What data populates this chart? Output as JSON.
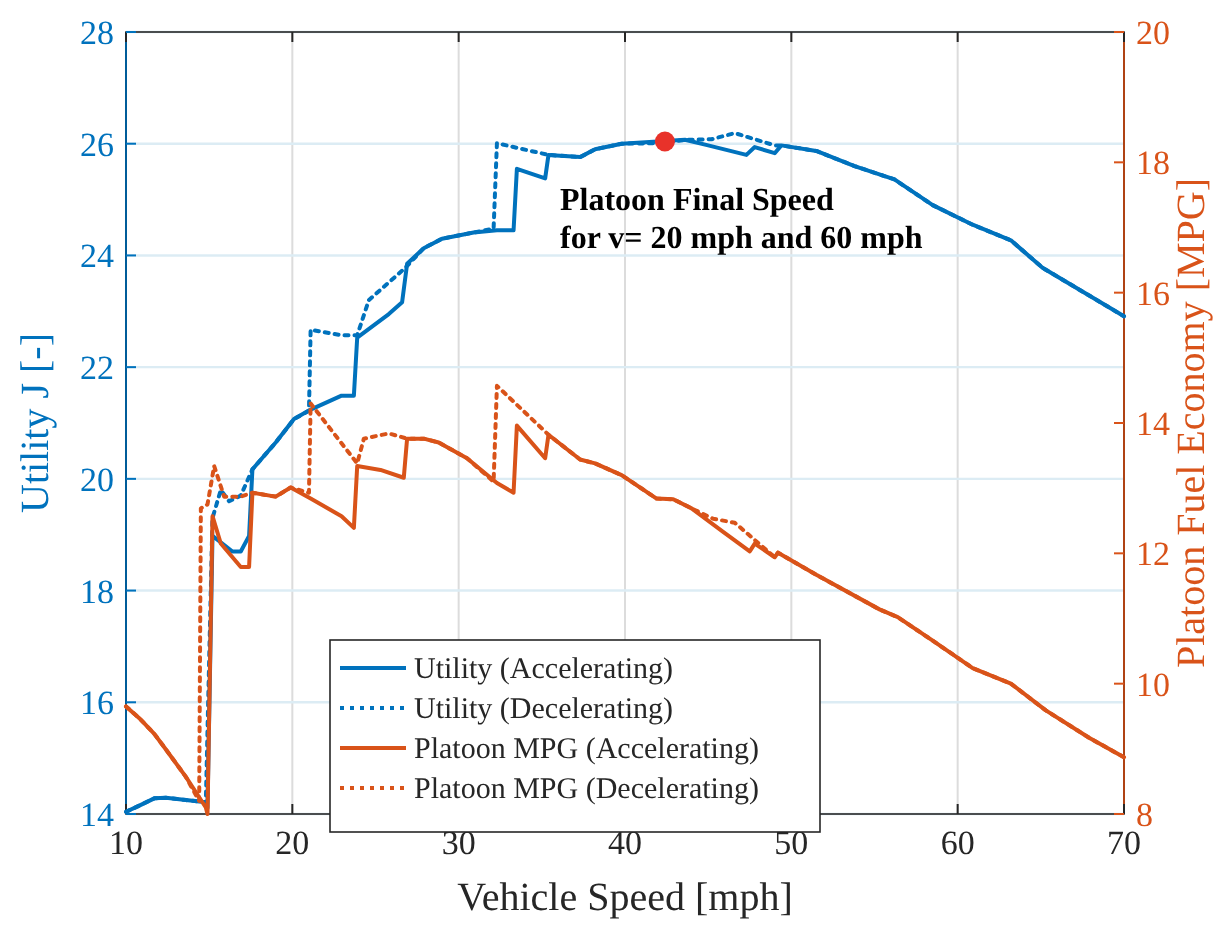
{
  "chart_data": {
    "type": "line",
    "xlabel": "Vehicle Speed [mph]",
    "ylabel": "Utility J [-]",
    "y2label": "Platoon Fuel Economy [MPG]",
    "xlim": [
      10,
      70
    ],
    "xticks": [
      10,
      20,
      30,
      40,
      50,
      60,
      70
    ],
    "ylim": [
      14,
      28
    ],
    "yticks": [
      14,
      16,
      18,
      20,
      22,
      24,
      26,
      28
    ],
    "y2lim": [
      8,
      20
    ],
    "y2ticks": [
      8,
      10,
      12,
      14,
      16,
      18,
      20
    ],
    "grid": true,
    "legend": "bottom",
    "annotations": [
      "Platoon Final Speed\nfor v= 20 mph and 60 mph"
    ],
    "series": [
      {
        "name": "Utility (Accelerating)",
        "color": "#0072bd",
        "line_style": "solid",
        "x": [
          10,
          10.8,
          11.7,
          12.4,
          13.6,
          14.8,
          14.9,
          15.2,
          16.4,
          16.9,
          17.4,
          17.6,
          19,
          20.1,
          21.1,
          22.96,
          23.7,
          23.9,
          25.8,
          26.6,
          26.9,
          27.9,
          29,
          30.9,
          32.3,
          33.3,
          33.5,
          35.2,
          35.4,
          37.3,
          38.2,
          39.8,
          43.6,
          45,
          47.3,
          47.8,
          49,
          49.4,
          51.5,
          53.8,
          56.2,
          58.5,
          60.9,
          63.2,
          65.1,
          70
        ],
        "values": [
          14.04,
          14.15,
          14.28,
          14.29,
          14.25,
          14.21,
          14.11,
          18.98,
          18.7,
          18.7,
          18.98,
          20.17,
          20.65,
          21.07,
          21.24,
          21.49,
          21.49,
          22.53,
          22.95,
          23.16,
          23.85,
          24.13,
          24.3,
          24.41,
          24.45,
          24.45,
          25.55,
          25.38,
          25.8,
          25.76,
          25.9,
          26,
          26.07,
          25.97,
          25.8,
          25.94,
          25.83,
          25.97,
          25.87,
          25.6,
          25.36,
          24.9,
          24.55,
          24.27,
          23.78,
          22.91
        ]
      },
      {
        "name": "Utility (Decelerating)",
        "color": "#0072bd",
        "line_style": "dotted",
        "x": [
          10,
          10.8,
          11.7,
          12.4,
          13.6,
          14.8,
          15.2,
          15.7,
          16.2,
          16.9,
          17.6,
          19,
          20.1,
          21,
          21.1,
          22.96,
          23.9,
          24.6,
          26.8,
          27.9,
          29,
          30.9,
          32.1,
          32.3,
          33.3,
          35.4,
          37.3,
          38.2,
          39.8,
          42.4,
          43.6,
          45.2,
          46.6,
          49,
          49.4,
          51.5,
          53.8,
          56.2,
          58.5,
          60.9,
          63.2,
          65.1,
          70
        ],
        "values": [
          14.04,
          14.15,
          14.28,
          14.29,
          14.25,
          14.21,
          19.3,
          19.8,
          19.6,
          19.7,
          20.17,
          20.65,
          21.07,
          21.22,
          22.67,
          22.57,
          22.57,
          23.2,
          23.78,
          24.13,
          24.3,
          24.41,
          24.48,
          26.01,
          25.94,
          25.8,
          25.76,
          25.9,
          26,
          26.01,
          26.07,
          26.08,
          26.19,
          25.97,
          25.97,
          25.87,
          25.6,
          25.36,
          24.9,
          24.55,
          24.27,
          23.78,
          22.91
        ]
      },
      {
        "name": "Platoon MPG (Accelerating)",
        "color": "#d95319",
        "line_style": "solid",
        "axis": "y2",
        "x": [
          10,
          10.8,
          11.7,
          12.4,
          13.6,
          14.8,
          14.9,
          15.2,
          15.7,
          16.9,
          17.4,
          17.6,
          19,
          19.9,
          21.1,
          22.96,
          23.7,
          23.9,
          25.3,
          26.7,
          26.9,
          27.9,
          28.8,
          30.5,
          32.3,
          33.3,
          33.5,
          35.2,
          35.4,
          37.3,
          38.2,
          39.8,
          41.9,
          42.9,
          44,
          45.9,
          47.5,
          47.8,
          49,
          49.2,
          51.5,
          55.3,
          56.4,
          58.5,
          60.9,
          63.2,
          65.3,
          67.9,
          70
        ],
        "values": [
          9.65,
          9.47,
          9.23,
          8.99,
          8.57,
          8.1,
          8,
          12.57,
          12.15,
          11.79,
          11.79,
          12.93,
          12.87,
          13.01,
          12.84,
          12.57,
          12.39,
          13.34,
          13.28,
          13.16,
          13.76,
          13.76,
          13.7,
          13.46,
          13.08,
          12.93,
          13.96,
          13.46,
          13.82,
          13.44,
          13.38,
          13.2,
          12.84,
          12.83,
          12.69,
          12.33,
          12.03,
          12.15,
          11.94,
          12.01,
          11.67,
          11.14,
          11.02,
          10.66,
          10.24,
          10,
          9.59,
          9.17,
          8.87
        ]
      },
      {
        "name": "Platoon MPG (Decelerating)",
        "color": "#d95319",
        "line_style": "dotted",
        "axis": "y2",
        "x": [
          10,
          10.8,
          11.7,
          12.4,
          13.6,
          14.4,
          14.5,
          14.9,
          15.3,
          15.9,
          16.9,
          17.6,
          19,
          19.9,
          21,
          21.1,
          23.9,
          24.3,
          25.8,
          26.9,
          27.9,
          28.8,
          30.5,
          32.1,
          32.3,
          35.4,
          37.3,
          38.2,
          39.8,
          41.9,
          42.9,
          44,
          45.3,
          46.6,
          49,
          49.2,
          51.5,
          55.3,
          56.4,
          58.5,
          60.9,
          63.2,
          65.3,
          67.9,
          70
        ],
        "values": [
          9.65,
          9.47,
          9.23,
          8.99,
          8.57,
          8.2,
          12.69,
          12.75,
          13.34,
          12.87,
          12.87,
          12.93,
          12.87,
          13.01,
          12.93,
          14.3,
          13.38,
          13.76,
          13.84,
          13.76,
          13.76,
          13.7,
          13.46,
          13.1,
          14.57,
          13.82,
          13.44,
          13.38,
          13.2,
          12.84,
          12.83,
          12.69,
          12.53,
          12.47,
          11.94,
          12.01,
          11.67,
          11.14,
          11.02,
          10.66,
          10.24,
          10,
          9.59,
          9.17,
          8.87
        ]
      },
      {
        "type": "scatter",
        "marker": "circle",
        "color": "#e8322a",
        "x": [
          42.4
        ],
        "values": [
          26.04
        ]
      }
    ]
  }
}
